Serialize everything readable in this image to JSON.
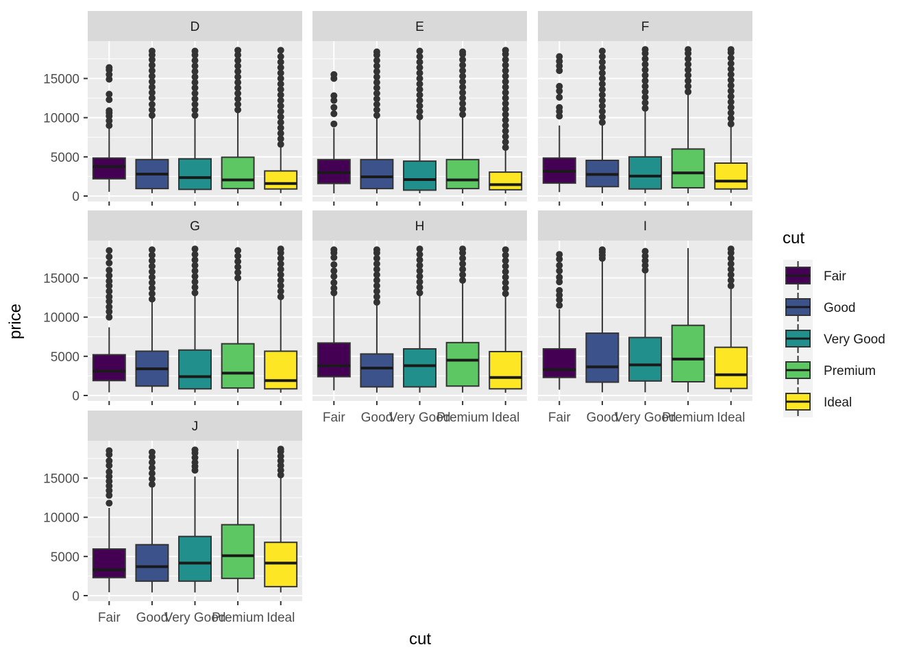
{
  "chart_data": {
    "type": "boxplot",
    "facet_by": "color",
    "facets": [
      "D",
      "E",
      "F",
      "G",
      "H",
      "I",
      "J"
    ],
    "categories": [
      "Fair",
      "Good",
      "Very Good",
      "Premium",
      "Ideal"
    ],
    "xlabel": "cut",
    "ylabel": "price",
    "ylim": [
      0,
      19000
    ],
    "yticks": [
      0,
      5000,
      10000,
      15000
    ],
    "grid": true,
    "legend": {
      "title": "cut",
      "position": "right",
      "entries": [
        "Fair",
        "Good",
        "Very Good",
        "Premium",
        "Ideal"
      ]
    },
    "colors": {
      "Fair": "#440154",
      "Good": "#3b528b",
      "Very Good": "#21908c",
      "Premium": "#5dc863",
      "Ideal": "#fde725",
      "panel_bg": "#ebebeb",
      "strip_bg": "#d9d9d9",
      "grid": "#ffffff",
      "outline": "#333333"
    },
    "boxes": {
      "D": [
        {
          "q1": 2200,
          "median": 3750,
          "q3": 4850,
          "wlo": 540,
          "whi": 8750,
          "out": [
            9000,
            9600,
            10200,
            10600,
            10900,
            12300,
            13000,
            14900,
            15500,
            16100,
            16400
          ]
        },
        {
          "q1": 950,
          "median": 2800,
          "q3": 4650,
          "wlo": 360,
          "whi": 10100,
          "out": [
            10300,
            11000,
            11700,
            12500,
            13200,
            13900,
            14600,
            15300,
            16000,
            16700,
            17400,
            18000,
            18500
          ]
        },
        {
          "q1": 850,
          "median": 2350,
          "q3": 4750,
          "wlo": 360,
          "whi": 10100,
          "out": [
            10300,
            11000,
            11700,
            12400,
            13100,
            13800,
            14500,
            15200,
            15900,
            16600,
            17300,
            18000,
            18500
          ]
        },
        {
          "q1": 950,
          "median": 2050,
          "q3": 4950,
          "wlo": 330,
          "whi": 10900,
          "out": [
            11000,
            11700,
            12400,
            13100,
            13800,
            14500,
            15200,
            15900,
            16600,
            17300,
            18000,
            18600
          ]
        },
        {
          "q1": 900,
          "median": 1600,
          "q3": 3200,
          "wlo": 370,
          "whi": 6400,
          "out": [
            6600,
            7300,
            8000,
            8700,
            9400,
            10100,
            10800,
            11500,
            12200,
            12900,
            13600,
            14300,
            15000,
            15700,
            16400,
            17100,
            17800,
            18600
          ]
        }
      ],
      "E": [
        {
          "q1": 1600,
          "median": 3000,
          "q3": 4650,
          "wlo": 340,
          "whi": 8700,
          "out": [
            9200,
            10500,
            11300,
            12200,
            12800,
            15000,
            15500
          ]
        },
        {
          "q1": 950,
          "median": 2450,
          "q3": 4650,
          "wlo": 330,
          "whi": 10100,
          "out": [
            10300,
            11000,
            11700,
            12400,
            13100,
            13800,
            14500,
            15200,
            15900,
            16600,
            17300,
            18000,
            18400
          ]
        },
        {
          "q1": 750,
          "median": 2100,
          "q3": 4450,
          "wlo": 350,
          "whi": 9900,
          "out": [
            10100,
            10800,
            11500,
            12200,
            12900,
            13600,
            14300,
            15000,
            15700,
            16400,
            17100,
            17800,
            18500
          ]
        },
        {
          "q1": 950,
          "median": 2050,
          "q3": 4650,
          "wlo": 330,
          "whi": 10200,
          "out": [
            10400,
            11100,
            11800,
            12500,
            13200,
            13900,
            14600,
            15300,
            16000,
            16700,
            17400,
            18100,
            18400
          ]
        },
        {
          "q1": 800,
          "median": 1450,
          "q3": 3050,
          "wlo": 330,
          "whi": 6000,
          "out": [
            6200,
            6900,
            7600,
            8300,
            9000,
            9700,
            10400,
            11100,
            11800,
            12500,
            13200,
            13900,
            14600,
            15300,
            16000,
            16700,
            17400,
            18100,
            18600
          ]
        }
      ],
      "F": [
        {
          "q1": 1650,
          "median": 3150,
          "q3": 4850,
          "wlo": 500,
          "whi": 9000,
          "out": [
            10200,
            10800,
            11300,
            12600,
            13400,
            14000,
            16000,
            16600,
            17200,
            17800
          ]
        },
        {
          "q1": 1200,
          "median": 2750,
          "q3": 4550,
          "wlo": 360,
          "whi": 9200,
          "out": [
            9400,
            10100,
            10800,
            11500,
            12200,
            12900,
            13600,
            14300,
            15000,
            15700,
            16400,
            17100,
            17800,
            18500
          ]
        },
        {
          "q1": 900,
          "median": 2550,
          "q3": 5000,
          "wlo": 360,
          "whi": 11000,
          "out": [
            11200,
            11900,
            12600,
            13300,
            14000,
            14700,
            15400,
            16100,
            16800,
            17500,
            18200,
            18700
          ]
        },
        {
          "q1": 1050,
          "median": 2950,
          "q3": 6000,
          "wlo": 340,
          "whi": 13100,
          "out": [
            13300,
            14000,
            14700,
            15400,
            16100,
            16800,
            17500,
            18200,
            18700
          ]
        },
        {
          "q1": 900,
          "median": 1900,
          "q3": 4200,
          "wlo": 400,
          "whi": 9000,
          "out": [
            9200,
            9900,
            10600,
            11300,
            12000,
            12700,
            13400,
            14100,
            14800,
            15500,
            16200,
            16900,
            17600,
            18300,
            18700
          ]
        }
      ],
      "G": [
        {
          "q1": 1900,
          "median": 3100,
          "q3": 5200,
          "wlo": 400,
          "whi": 8700,
          "out": [
            10000,
            10700,
            11300,
            12000,
            12600,
            13300,
            14000,
            14600,
            15300,
            16000,
            16900,
            17700,
            18500
          ]
        },
        {
          "q1": 1200,
          "median": 3400,
          "q3": 5650,
          "wlo": 400,
          "whi": 12000,
          "out": [
            12300,
            13000,
            13700,
            14400,
            15100,
            15800,
            16500,
            17200,
            17900,
            18600
          ]
        },
        {
          "q1": 850,
          "median": 2400,
          "q3": 5800,
          "wlo": 380,
          "whi": 12900,
          "out": [
            13100,
            13800,
            14500,
            15200,
            15900,
            16600,
            17300,
            18000,
            18700
          ]
        },
        {
          "q1": 950,
          "median": 2850,
          "q3": 6600,
          "wlo": 380,
          "whi": 14800,
          "out": [
            15000,
            15700,
            16400,
            17100,
            17800,
            18500
          ]
        },
        {
          "q1": 850,
          "median": 1900,
          "q3": 5650,
          "wlo": 360,
          "whi": 12400,
          "out": [
            12600,
            13300,
            14000,
            14700,
            15400,
            16100,
            16800,
            17500,
            18200,
            18700
          ]
        }
      ],
      "H": [
        {
          "q1": 2400,
          "median": 3800,
          "q3": 6700,
          "wlo": 660,
          "whi": 12800,
          "out": [
            13100,
            13700,
            14400,
            15200,
            15900,
            16700,
            17600,
            18200,
            18600
          ]
        },
        {
          "q1": 1100,
          "median": 3500,
          "q3": 5300,
          "wlo": 370,
          "whi": 11700,
          "out": [
            11900,
            12600,
            13300,
            14000,
            14700,
            15400,
            16100,
            16800,
            17500,
            18200,
            18600
          ]
        },
        {
          "q1": 1100,
          "median": 3800,
          "q3": 5950,
          "wlo": 370,
          "whi": 12900,
          "out": [
            13100,
            13800,
            14500,
            15200,
            15900,
            16600,
            17300,
            18000,
            18700
          ]
        },
        {
          "q1": 1200,
          "median": 4500,
          "q3": 6750,
          "wlo": 370,
          "whi": 14500,
          "out": [
            14700,
            15400,
            16100,
            16800,
            17500,
            18200,
            18700
          ]
        },
        {
          "q1": 850,
          "median": 2300,
          "q3": 5600,
          "wlo": 350,
          "whi": 12800,
          "out": [
            13000,
            13700,
            14400,
            15100,
            15800,
            16500,
            17200,
            17900,
            18600
          ]
        }
      ],
      "I": [
        {
          "q1": 2300,
          "median": 3300,
          "q3": 5950,
          "wlo": 740,
          "whi": 11000,
          "out": [
            11500,
            12200,
            12800,
            13400,
            14500,
            15100,
            15900,
            16600,
            17400,
            18000
          ]
        },
        {
          "q1": 1700,
          "median": 3650,
          "q3": 7950,
          "wlo": 400,
          "whi": 17300,
          "out": [
            17500,
            17900,
            18300,
            18600
          ]
        },
        {
          "q1": 1850,
          "median": 3900,
          "q3": 7400,
          "wlo": 400,
          "whi": 15800,
          "out": [
            16000,
            16600,
            17200,
            17800,
            18400
          ]
        },
        {
          "q1": 1750,
          "median": 4650,
          "q3": 8950,
          "wlo": 400,
          "whi": 18800,
          "out": []
        },
        {
          "q1": 900,
          "median": 2650,
          "q3": 6150,
          "wlo": 400,
          "whi": 13800,
          "out": [
            14000,
            14700,
            15400,
            16100,
            16800,
            17500,
            18200,
            18700
          ]
        }
      ],
      "J": [
        {
          "q1": 2300,
          "median": 3300,
          "q3": 5950,
          "wlo": 430,
          "whi": 11200,
          "out": [
            11800,
            12800,
            13400,
            14000,
            14600,
            15200,
            15800,
            16600,
            17200,
            18000,
            18500
          ]
        },
        {
          "q1": 1850,
          "median": 3700,
          "q3": 6500,
          "wlo": 400,
          "whi": 14000,
          "out": [
            14200,
            14900,
            15600,
            16300,
            17000,
            17700,
            18300
          ]
        },
        {
          "q1": 1850,
          "median": 4150,
          "q3": 7550,
          "wlo": 400,
          "whi": 15200,
          "out": [
            16000,
            16500,
            17000,
            17600,
            18200,
            18600
          ]
        },
        {
          "q1": 2200,
          "median": 5100,
          "q3": 9050,
          "wlo": 400,
          "whi": 18700,
          "out": []
        },
        {
          "q1": 1150,
          "median": 4150,
          "q3": 6800,
          "wlo": 400,
          "whi": 15200,
          "out": [
            15400,
            16000,
            16600,
            17200,
            17800,
            18400,
            18700
          ]
        }
      ]
    }
  }
}
